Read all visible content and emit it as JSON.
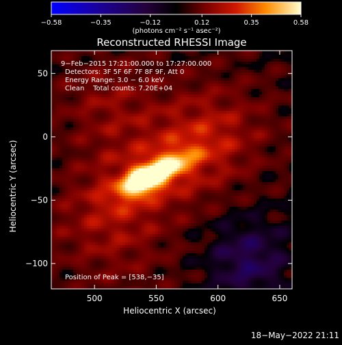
{
  "chart_data": {
    "type": "heatmap",
    "title": "Reconstructed RHESSI Image",
    "xlabel": "Heliocentric X (arcsec)",
    "ylabel": "Heliocentric Y (arcsec)",
    "xlim": [
      465,
      660
    ],
    "ylim": [
      -120,
      68
    ],
    "x_ticks": [
      500,
      550,
      600,
      650
    ],
    "y_ticks": [
      50,
      0,
      -50,
      -100
    ],
    "x_tick_labels": [
      "500",
      "550",
      "600",
      "650"
    ],
    "y_tick_labels": [
      "50",
      "0",
      "−50",
      "−100"
    ],
    "colorbar": {
      "range": [
        -0.58,
        0.58
      ],
      "ticks": [
        -0.58,
        -0.35,
        -0.12,
        0.12,
        0.35,
        0.58
      ],
      "tick_labels": [
        "−0.58",
        "−0.35",
        "−0.12",
        "0.12",
        "0.35",
        "0.58"
      ],
      "unit_label": "(photons cm⁻² s⁻¹ asec⁻²)",
      "colormap": "red-temperature"
    },
    "annotations": [
      "9−Feb−2015 17:21:00.000 to 17:27:00.000",
      "Detectors: 3F 5F 6F 7F 8F 9F, Att 0",
      "Energy Range: 3.0 − 6.0 keV",
      "Clean    Total counts: 7.20E+04"
    ],
    "peak_label": "Position of Peak = [538,−35]",
    "peak": [
      538,
      -35
    ],
    "sources": [
      {
        "x": 538,
        "y": -35,
        "peak": 0.58
      },
      {
        "x": 560,
        "y": -24,
        "peak": 0.5
      },
      {
        "x": 512,
        "y": -44,
        "peak": 0.3
      }
    ]
  },
  "footer": {
    "timestamp": "18−May−2022 21:11"
  }
}
